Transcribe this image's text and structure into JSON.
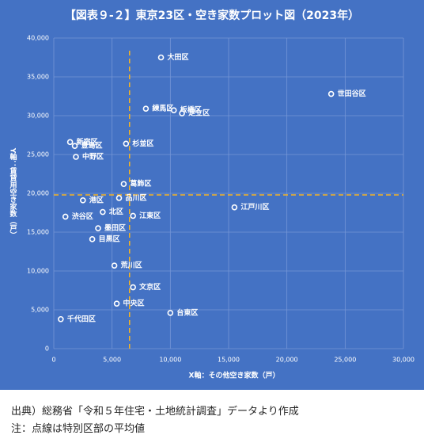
{
  "chart_data": {
    "type": "scatter",
    "title": "【図表９-２】東京23区・空き家数プロット図（2023年）",
    "x_label": "X軸：その他空き家数（戸）",
    "y_label": "Y軸：賃貸用空き家数（戸）",
    "points": [
      {
        "label": "大田区",
        "x": 9200,
        "y": 37500
      },
      {
        "label": "世田谷区",
        "x": 23800,
        "y": 32800
      },
      {
        "label": "練馬区",
        "x": 7900,
        "y": 30900
      },
      {
        "label": "板橋区",
        "x": 10300,
        "y": 30700
      },
      {
        "label": "足立区",
        "x": 11000,
        "y": 30300
      },
      {
        "label": "新宿区",
        "x": 1400,
        "y": 26600
      },
      {
        "label": "豊島区",
        "x": 1800,
        "y": 26100
      },
      {
        "label": "杉並区",
        "x": 6200,
        "y": 26400
      },
      {
        "label": "中野区",
        "x": 1900,
        "y": 24700
      },
      {
        "label": "葛飾区",
        "x": 6000,
        "y": 21200
      },
      {
        "label": "品川区",
        "x": 5600,
        "y": 19400
      },
      {
        "label": "港区",
        "x": 2500,
        "y": 19100
      },
      {
        "label": "江戸川区",
        "x": 15500,
        "y": 18200
      },
      {
        "label": "北区",
        "x": 4200,
        "y": 17600
      },
      {
        "label": "渋谷区",
        "x": 1000,
        "y": 17000
      },
      {
        "label": "江東区",
        "x": 6800,
        "y": 17100
      },
      {
        "label": "墨田区",
        "x": 3800,
        "y": 15500
      },
      {
        "label": "目黒区",
        "x": 3300,
        "y": 14100
      },
      {
        "label": "荒川区",
        "x": 5200,
        "y": 10700
      },
      {
        "label": "文京区",
        "x": 6800,
        "y": 7900
      },
      {
        "label": "中央区",
        "x": 5400,
        "y": 5800
      },
      {
        "label": "台東区",
        "x": 10000,
        "y": 4600
      },
      {
        "label": "千代田区",
        "x": 600,
        "y": 3800
      }
    ],
    "reference_lines": {
      "x": 6500,
      "y": 19800
    },
    "xlim": [
      0,
      30000
    ],
    "ylim": [
      0,
      40000
    ],
    "xticks": [
      0,
      {
        "value": 5000,
        "label": "5,000"
      },
      {
        "value": 10000,
        "label": "10,000"
      },
      {
        "value": 15000,
        "label": "15,000"
      },
      {
        "value": 20000,
        "label": "20,000"
      },
      {
        "value": 25000,
        "label": "25,000"
      },
      {
        "value": 30000,
        "label": "30,000"
      }
    ],
    "yticks": [
      0,
      {
        "value": 5000,
        "label": "5,000"
      },
      {
        "value": 10000,
        "label": "10,000"
      },
      {
        "value": 15000,
        "label": "15,000"
      },
      {
        "value": 20000,
        "label": "20,000"
      },
      {
        "value": 25000,
        "label": "25,000"
      },
      {
        "value": 30000,
        "label": "30,000"
      },
      {
        "value": 35000,
        "label": "35,000"
      },
      {
        "value": 40000,
        "label": "40,000"
      }
    ],
    "grid": true,
    "background": "#4472c4",
    "point_color": "#ffffff",
    "reference_color": "#f5b324"
  },
  "notes": [
    "出典）総務省「令和５年住宅・土地統計調査」データより作成",
    "注：点線は特別区部の平均値"
  ]
}
